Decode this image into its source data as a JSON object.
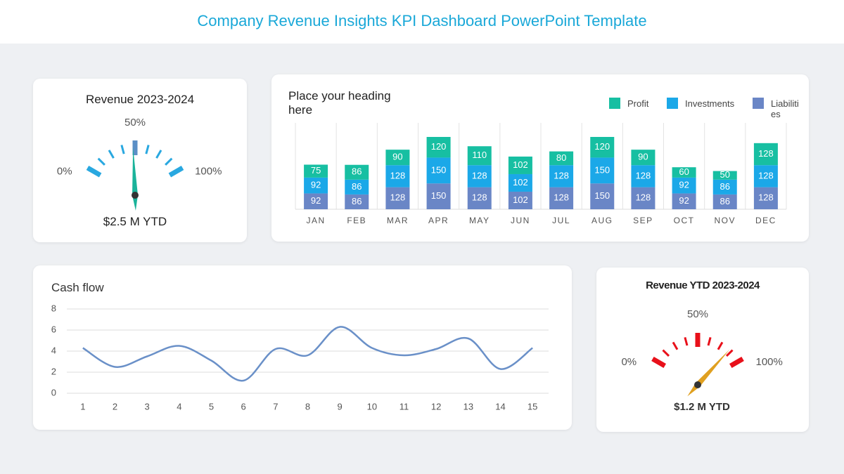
{
  "title": "Company Revenue Insights KPI Dashboard PowerPoint Template",
  "chart_data": [
    {
      "type": "gauge",
      "title": "Revenue 2023-2024",
      "value": 48,
      "annotation": "$2.5 M YTD",
      "xlim": [
        0,
        100
      ],
      "xticks": [
        {
          "value": 0,
          "label": "0%"
        },
        {
          "value": 50,
          "label": "50%"
        },
        {
          "value": 100,
          "label": "100%"
        }
      ],
      "color": "#29a8e0",
      "needle_color": "#1ab39a"
    },
    {
      "type": "stacked-bar",
      "title": "Place your heading here",
      "categories": [
        "JAN",
        "FEB",
        "MAR",
        "APR",
        "MAY",
        "JUN",
        "JUL",
        "AUG",
        "SEP",
        "OCT",
        "NOV",
        "DEC"
      ],
      "series": [
        {
          "name": "Liabilities",
          "color": "#6a86c6",
          "values": [
            92,
            86,
            128,
            150,
            128,
            102,
            128,
            150,
            128,
            92,
            86,
            128
          ]
        },
        {
          "name": "Investments",
          "color": "#1ba8e8",
          "values": [
            92,
            86,
            128,
            150,
            128,
            102,
            128,
            150,
            128,
            92,
            86,
            128
          ]
        },
        {
          "name": "Profit",
          "color": "#17bfa2",
          "values": [
            75,
            86,
            90,
            120,
            110,
            102,
            80,
            120,
            90,
            60,
            50,
            128
          ]
        }
      ],
      "legend": "top-right",
      "grid": true
    },
    {
      "type": "line",
      "title": "Cash flow",
      "x": [
        1,
        2,
        3,
        4,
        5,
        6,
        7,
        8,
        9,
        10,
        11,
        12,
        13,
        14,
        15
      ],
      "series": [
        {
          "name": "Cash flow",
          "color": "#6a90c8",
          "values": [
            4.3,
            2.5,
            3.5,
            4.5,
            3.1,
            1.2,
            4.2,
            3.6,
            6.3,
            4.3,
            3.6,
            4.2,
            5.2,
            2.3,
            4.3
          ]
        }
      ],
      "xlim": [
        0.5,
        15.5
      ],
      "xticks": [
        1,
        2,
        3,
        4,
        5,
        6,
        7,
        8,
        9,
        10,
        11,
        12,
        13,
        14,
        15
      ],
      "ylim": [
        0,
        8
      ],
      "yticks": [
        0,
        2,
        4,
        6,
        8
      ],
      "grid": true
    },
    {
      "type": "gauge",
      "title": "Revenue YTD 2023-2024",
      "value": 85,
      "annotation": "$1.2 M YTD",
      "xlim": [
        0,
        100
      ],
      "xticks": [
        {
          "value": 0,
          "label": "0%"
        },
        {
          "value": 50,
          "label": "50%"
        },
        {
          "value": 100,
          "label": "100%"
        }
      ],
      "color": "#e8101a",
      "needle_color": "#e0a020"
    }
  ]
}
